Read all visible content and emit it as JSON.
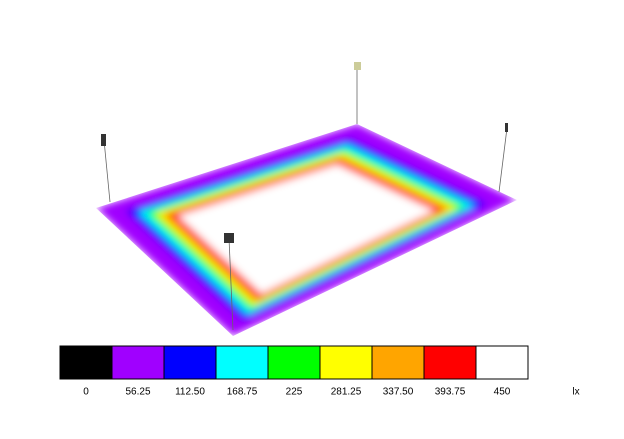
{
  "legend": {
    "unit": "lx",
    "stops": [
      {
        "value": 0,
        "color": "#000000"
      },
      {
        "value": 56.25,
        "color": "#a000ff"
      },
      {
        "value": {
          "value": 112.5,
          "label": "112.50"
        },
        "color": "#0000ff"
      },
      {
        "value": 168.75,
        "color": "#00ffff"
      },
      {
        "value": 225,
        "color": "#00ff00"
      },
      {
        "value": 281.25,
        "color": "#ffff00"
      },
      {
        "value": {
          "value": 337.5,
          "label": "337.50"
        },
        "color": "#ffa500"
      },
      {
        "value": 393.75,
        "color": "#ff0000"
      },
      {
        "value": 450,
        "color": "#ffffff"
      }
    ]
  }
}
